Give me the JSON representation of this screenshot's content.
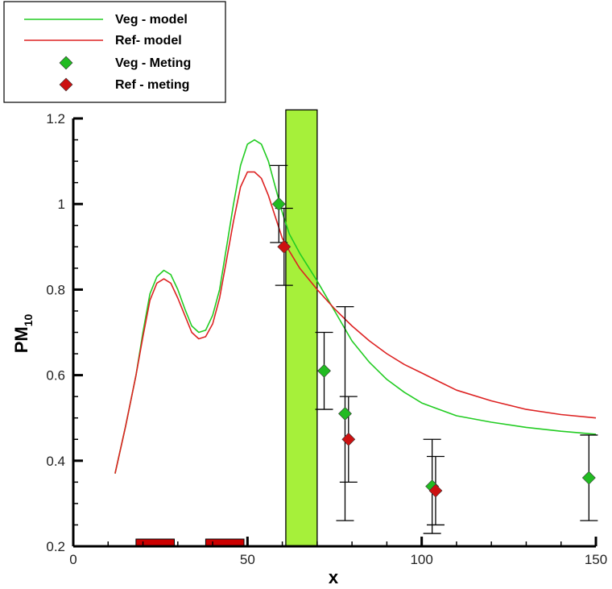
{
  "chart_data": {
    "type": "line",
    "xlabel": "x",
    "ylabel": "PM",
    "ylabel_sub": "10",
    "xlim": [
      0,
      150
    ],
    "ylim": [
      0.2,
      1.2
    ],
    "x_ticks": [
      0,
      50,
      100,
      150
    ],
    "y_ticks": [
      0.2,
      0.4,
      0.6,
      0.8,
      1.0,
      1.2
    ],
    "x_tick_labels": [
      "0",
      "50",
      "100",
      "150"
    ],
    "y_tick_labels": [
      "0.2",
      "0.4",
      "0.6",
      "0.8",
      "1",
      "1.2"
    ],
    "legend_position": "top-left",
    "grid": false,
    "series": [
      {
        "name": "Veg - model",
        "kind": "line",
        "color": "#22cc22",
        "x": [
          12,
          15,
          18,
          20,
          22,
          24,
          26,
          28,
          30,
          32,
          34,
          36,
          38,
          40,
          42,
          44,
          46,
          48,
          50,
          52,
          54,
          56,
          58,
          60,
          62,
          65,
          70,
          75,
          80,
          85,
          90,
          95,
          100,
          105,
          110,
          120,
          130,
          140,
          150
        ],
        "y": [
          0.37,
          0.48,
          0.6,
          0.7,
          0.79,
          0.83,
          0.845,
          0.835,
          0.8,
          0.755,
          0.715,
          0.7,
          0.705,
          0.74,
          0.8,
          0.9,
          1.0,
          1.09,
          1.14,
          1.15,
          1.14,
          1.1,
          1.04,
          0.98,
          0.93,
          0.885,
          0.82,
          0.75,
          0.68,
          0.63,
          0.59,
          0.56,
          0.535,
          0.52,
          0.505,
          0.49,
          0.478,
          0.469,
          0.462
        ]
      },
      {
        "name": "Ref- model",
        "kind": "line",
        "color": "#dd2222",
        "x": [
          12,
          15,
          18,
          20,
          22,
          24,
          26,
          28,
          30,
          32,
          34,
          36,
          38,
          40,
          42,
          44,
          46,
          48,
          50,
          52,
          54,
          56,
          58,
          60,
          62,
          65,
          70,
          75,
          80,
          85,
          90,
          95,
          100,
          105,
          110,
          120,
          130,
          140,
          150
        ],
        "y": [
          0.37,
          0.48,
          0.6,
          0.69,
          0.775,
          0.815,
          0.825,
          0.815,
          0.78,
          0.74,
          0.7,
          0.685,
          0.69,
          0.72,
          0.78,
          0.87,
          0.96,
          1.04,
          1.075,
          1.075,
          1.06,
          1.02,
          0.97,
          0.92,
          0.89,
          0.85,
          0.8,
          0.755,
          0.715,
          0.68,
          0.65,
          0.625,
          0.605,
          0.585,
          0.565,
          0.54,
          0.52,
          0.508,
          0.5
        ]
      },
      {
        "name": "Veg - Meting",
        "kind": "scatter",
        "color": "#22bb22",
        "x": [
          59,
          72,
          78,
          103,
          148
        ],
        "y": [
          1.0,
          0.61,
          0.51,
          0.34,
          0.36
        ],
        "err_low": [
          0.91,
          0.52,
          0.26,
          0.23,
          0.26
        ],
        "err_high": [
          1.09,
          0.7,
          0.76,
          0.45,
          0.46
        ]
      },
      {
        "name": "Ref - meting",
        "kind": "scatter",
        "color": "#cc1111",
        "x": [
          60.5,
          79,
          104
        ],
        "y": [
          0.9,
          0.45,
          0.33
        ],
        "err_low": [
          0.81,
          0.35,
          0.25
        ],
        "err_high": [
          0.99,
          0.55,
          0.41
        ]
      }
    ],
    "regions": {
      "green_band": {
        "x_start": 61,
        "x_end": 70,
        "y_top": 1.22,
        "color": "#a6f03a"
      },
      "red_blocks": [
        {
          "x_start": 18,
          "x_end": 29,
          "color": "#cc0000"
        },
        {
          "x_start": 38,
          "x_end": 49,
          "color": "#cc0000"
        }
      ]
    }
  }
}
